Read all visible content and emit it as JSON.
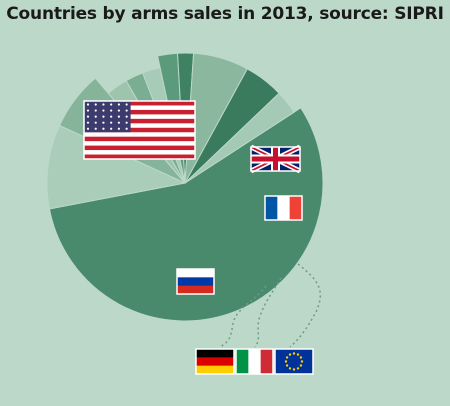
{
  "chart_data": {
    "type": "pie",
    "title": "Countries by arms sales in 2013, source: SIPRI",
    "legend": "flag icons placed on slices",
    "slices": [
      {
        "key": "usa",
        "value": 57.0,
        "color": "#4a8a6c",
        "icon": "usa-flag-icon"
      },
      {
        "key": "uk",
        "value": 10.0,
        "color": "#a9cdb8",
        "icon": "uk-flag-icon"
      },
      {
        "key": "france",
        "value": 7.0,
        "color": "#86b49a",
        "icon": "france-flag-icon"
      },
      {
        "key": "eu",
        "value": 3.0,
        "color": "#9ec4ae",
        "icon": "eu-flag-icon"
      },
      {
        "key": "italy",
        "value": 2.5,
        "color": "#7aad91",
        "icon": "italy-flag-icon"
      },
      {
        "key": "germany",
        "value": 2.5,
        "color": "#a6cbb6",
        "icon": "germany-flag-icon"
      },
      {
        "key": "other-1",
        "value": 2.5,
        "color": "#5c9a7c"
      },
      {
        "key": "other-2",
        "value": 2.0,
        "color": "#3f8163"
      },
      {
        "key": "russia",
        "value": 7.0,
        "color": "#8ab79d",
        "icon": "russia-flag-icon"
      },
      {
        "key": "other-3",
        "value": 5.0,
        "color": "#3a7a5d"
      },
      {
        "key": "other-4",
        "value": 3.0,
        "color": "#a4c9b4"
      }
    ]
  }
}
